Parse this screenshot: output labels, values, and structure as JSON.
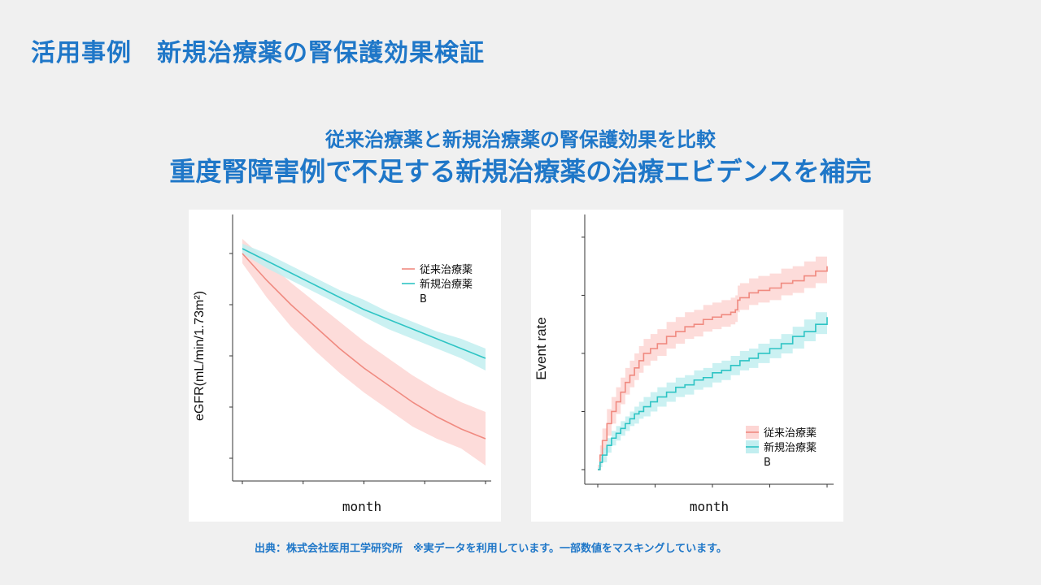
{
  "slide": {
    "title": "活用事例　新規治療薬の腎保護効果検証",
    "subtitle_1": "従来治療薬と新規治療薬の腎保護効果を比較",
    "subtitle_2": "重度腎障害例で不足する新規治療薬の治療エビデンスを補完",
    "footnote": "出典：株式会社医用工学研究所　※実データを利用しています。一部数値をマスキングしています。"
  },
  "colors": {
    "accent": "#1f77c8",
    "series_conventional": "#f08a80",
    "series_conventional_band": "#fdd6d4",
    "series_new": "#2ec4c4",
    "series_new_band": "#c2eef0"
  },
  "chart_data": [
    {
      "type": "line",
      "xlabel": "month",
      "ylabel": "eGFR(mL/min/1.73m²)",
      "tick_labels_masked": true,
      "xlim": [
        0,
        1
      ],
      "ylim": [
        0,
        1
      ],
      "x_ticks": [
        0,
        0.25,
        0.5,
        0.75,
        1.0
      ],
      "y_ticks": [
        0.08,
        0.29,
        0.5,
        0.71,
        0.92
      ],
      "legend_position": "top-right",
      "legend": [
        "従来治療薬",
        "新規治療薬",
        "B"
      ],
      "series": [
        {
          "name": "従来治療薬",
          "x": [
            0,
            0.1,
            0.2,
            0.3,
            0.4,
            0.5,
            0.6,
            0.7,
            0.8,
            0.9,
            1.0
          ],
          "values": [
            0.92,
            0.81,
            0.71,
            0.62,
            0.53,
            0.45,
            0.38,
            0.31,
            0.25,
            0.2,
            0.16
          ],
          "lower": [
            0.88,
            0.74,
            0.62,
            0.52,
            0.43,
            0.35,
            0.28,
            0.21,
            0.16,
            0.12,
            0.05
          ],
          "upper": [
            0.98,
            0.89,
            0.8,
            0.72,
            0.64,
            0.56,
            0.49,
            0.42,
            0.36,
            0.31,
            0.27
          ]
        },
        {
          "name": "新規治療薬",
          "x": [
            0,
            0.1,
            0.2,
            0.3,
            0.4,
            0.5,
            0.6,
            0.7,
            0.8,
            0.9,
            1.0
          ],
          "values": [
            0.94,
            0.89,
            0.84,
            0.79,
            0.74,
            0.69,
            0.65,
            0.61,
            0.57,
            0.53,
            0.49
          ],
          "lower": [
            0.92,
            0.86,
            0.81,
            0.76,
            0.71,
            0.66,
            0.61,
            0.57,
            0.53,
            0.49,
            0.44
          ],
          "upper": [
            0.96,
            0.92,
            0.87,
            0.82,
            0.77,
            0.73,
            0.68,
            0.64,
            0.6,
            0.57,
            0.53
          ]
        }
      ]
    },
    {
      "type": "line",
      "xlabel": "month",
      "ylabel": "Event rate",
      "tick_labels_masked": true,
      "xlim": [
        0,
        1
      ],
      "ylim": [
        0,
        1
      ],
      "x_ticks": [
        0,
        0.25,
        0.5,
        0.75,
        1.0
      ],
      "y_ticks": [
        0.0,
        0.24,
        0.48,
        0.72,
        0.96
      ],
      "legend_position": "bottom-right",
      "legend": [
        "従来治療薬",
        "新規治療薬",
        "B"
      ],
      "series": [
        {
          "name": "従来治療薬",
          "x": [
            0,
            0.01,
            0.02,
            0.04,
            0.06,
            0.08,
            0.1,
            0.12,
            0.14,
            0.16,
            0.18,
            0.2,
            0.23,
            0.26,
            0.3,
            0.34,
            0.38,
            0.42,
            0.46,
            0.5,
            0.54,
            0.58,
            0.6,
            0.61,
            0.62,
            0.66,
            0.7,
            0.75,
            0.8,
            0.85,
            0.9,
            0.95,
            1.0
          ],
          "values": [
            0.0,
            0.06,
            0.12,
            0.19,
            0.24,
            0.28,
            0.32,
            0.36,
            0.39,
            0.42,
            0.45,
            0.48,
            0.5,
            0.52,
            0.55,
            0.57,
            0.59,
            0.6,
            0.62,
            0.63,
            0.64,
            0.65,
            0.66,
            0.7,
            0.71,
            0.73,
            0.74,
            0.75,
            0.77,
            0.78,
            0.8,
            0.82,
            0.84
          ],
          "lower": [
            0.0,
            0.03,
            0.08,
            0.14,
            0.19,
            0.23,
            0.27,
            0.31,
            0.34,
            0.37,
            0.4,
            0.43,
            0.45,
            0.47,
            0.5,
            0.52,
            0.54,
            0.55,
            0.57,
            0.58,
            0.59,
            0.6,
            0.61,
            0.65,
            0.66,
            0.68,
            0.69,
            0.7,
            0.72,
            0.73,
            0.75,
            0.77,
            0.79
          ],
          "upper": [
            0.02,
            0.1,
            0.17,
            0.25,
            0.3,
            0.34,
            0.38,
            0.42,
            0.45,
            0.48,
            0.51,
            0.54,
            0.56,
            0.58,
            0.61,
            0.63,
            0.65,
            0.66,
            0.68,
            0.69,
            0.7,
            0.71,
            0.72,
            0.76,
            0.77,
            0.79,
            0.8,
            0.81,
            0.83,
            0.84,
            0.86,
            0.88,
            0.9
          ]
        },
        {
          "name": "新規治療薬",
          "x": [
            0,
            0.01,
            0.02,
            0.04,
            0.06,
            0.08,
            0.1,
            0.12,
            0.14,
            0.16,
            0.18,
            0.2,
            0.23,
            0.26,
            0.3,
            0.34,
            0.38,
            0.42,
            0.46,
            0.5,
            0.54,
            0.58,
            0.62,
            0.66,
            0.7,
            0.75,
            0.8,
            0.85,
            0.9,
            0.95,
            1.0
          ],
          "values": [
            0.0,
            0.03,
            0.06,
            0.1,
            0.13,
            0.15,
            0.17,
            0.19,
            0.21,
            0.23,
            0.24,
            0.26,
            0.28,
            0.3,
            0.32,
            0.34,
            0.35,
            0.37,
            0.38,
            0.4,
            0.41,
            0.43,
            0.45,
            0.46,
            0.48,
            0.5,
            0.52,
            0.55,
            0.57,
            0.6,
            0.63
          ],
          "lower": [
            0.0,
            0.01,
            0.03,
            0.07,
            0.1,
            0.12,
            0.14,
            0.16,
            0.18,
            0.19,
            0.21,
            0.22,
            0.24,
            0.26,
            0.28,
            0.3,
            0.31,
            0.33,
            0.34,
            0.36,
            0.37,
            0.39,
            0.41,
            0.42,
            0.44,
            0.46,
            0.48,
            0.5,
            0.53,
            0.56,
            0.58
          ],
          "upper": [
            0.01,
            0.05,
            0.09,
            0.13,
            0.16,
            0.18,
            0.2,
            0.22,
            0.24,
            0.26,
            0.28,
            0.3,
            0.32,
            0.34,
            0.36,
            0.38,
            0.39,
            0.41,
            0.42,
            0.44,
            0.45,
            0.47,
            0.49,
            0.5,
            0.52,
            0.54,
            0.56,
            0.59,
            0.62,
            0.65,
            0.68
          ]
        }
      ]
    }
  ]
}
